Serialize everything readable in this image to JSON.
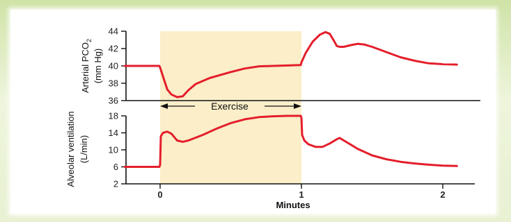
{
  "chart_data": [
    {
      "type": "line",
      "ylabel_line1": "Arterial PCO",
      "ylabel_sub": "2",
      "ylabel_line2": "(mm Hg)",
      "ylim": [
        36,
        44
      ],
      "yticks": [
        "36",
        "38",
        "40",
        "42",
        "44"
      ],
      "xlim": [
        -0.25,
        2.2
      ],
      "color": "#e41e2b",
      "series": [
        {
          "x": [
            -0.25,
            -0.005,
            0.0,
            0.02,
            0.05,
            0.08,
            0.12,
            0.16,
            0.2,
            0.25,
            0.35,
            0.5,
            0.6,
            0.7,
            0.8,
            0.9,
            0.995,
            1.0,
            1.03,
            1.08,
            1.13,
            1.17,
            1.2,
            1.23,
            1.25,
            1.27,
            1.3,
            1.35,
            1.4,
            1.45,
            1.5,
            1.6,
            1.7,
            1.8,
            1.9,
            2.0,
            2.1
          ],
          "y": [
            40,
            40,
            39.8,
            38.8,
            37.3,
            36.7,
            36.4,
            36.5,
            37.2,
            37.9,
            38.6,
            39.3,
            39.7,
            39.95,
            40.0,
            40.05,
            40.1,
            40.4,
            41.5,
            42.8,
            43.6,
            43.9,
            43.7,
            42.9,
            42.3,
            42.2,
            42.2,
            42.4,
            42.55,
            42.45,
            42.2,
            41.6,
            41.0,
            40.6,
            40.3,
            40.2,
            40.15
          ]
        }
      ]
    },
    {
      "type": "line",
      "ylabel_line1": "Alveolar ventilation",
      "ylabel_line2": "(L/min)",
      "ylim": [
        2,
        18
      ],
      "yticks": [
        "2",
        "6",
        "10",
        "14",
        "18"
      ],
      "xlim": [
        -0.25,
        2.2
      ],
      "xticks": [
        "0",
        "1",
        "2"
      ],
      "xlabel": "Minutes",
      "color": "#e41e2b",
      "series": [
        {
          "x": [
            -0.25,
            -0.005,
            0.0,
            0.005,
            0.02,
            0.05,
            0.08,
            0.12,
            0.16,
            0.2,
            0.3,
            0.4,
            0.5,
            0.6,
            0.7,
            0.8,
            0.9,
            0.995,
            1.0,
            1.005,
            1.02,
            1.05,
            1.1,
            1.15,
            1.2,
            1.25,
            1.27,
            1.3,
            1.4,
            1.5,
            1.6,
            1.7,
            1.8,
            1.9,
            2.0,
            2.1
          ],
          "y": [
            6,
            6,
            6.5,
            13.2,
            14.0,
            14.3,
            13.8,
            12.2,
            11.9,
            12.2,
            13.5,
            15.0,
            16.3,
            17.2,
            17.7,
            17.9,
            18.0,
            18.0,
            17.5,
            13.5,
            12.2,
            11.3,
            10.7,
            10.7,
            11.5,
            12.5,
            12.8,
            12.2,
            10.2,
            8.7,
            7.8,
            7.2,
            6.8,
            6.5,
            6.3,
            6.2
          ]
        }
      ]
    }
  ],
  "exercise": {
    "label": "Exercise",
    "start": 0,
    "end": 1,
    "shade": "#fbeec9"
  }
}
